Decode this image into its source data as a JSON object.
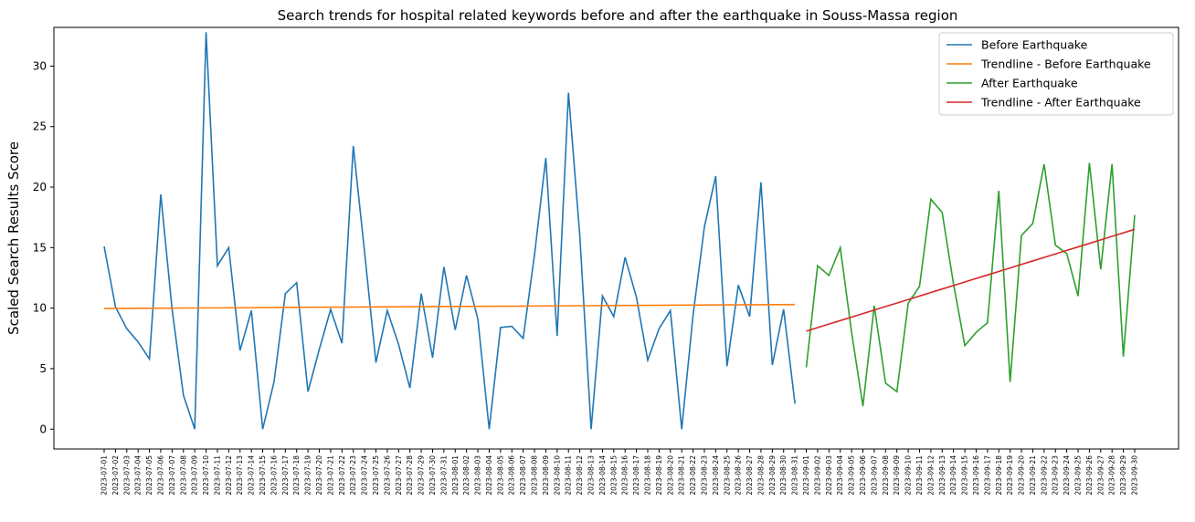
{
  "chart_data": {
    "type": "line",
    "title": "Search trends for hospital related keywords before and after the earthquake in Souss-Massa region",
    "y_label": "Scaled Search Results Score",
    "categories": [
      "2023-07-01",
      "2023-07-02",
      "2023-07-03",
      "2023-07-04",
      "2023-07-05",
      "2023-07-06",
      "2023-07-07",
      "2023-07-08",
      "2023-07-09",
      "2023-07-10",
      "2023-07-11",
      "2023-07-12",
      "2023-07-13",
      "2023-07-14",
      "2023-07-15",
      "2023-07-16",
      "2023-07-17",
      "2023-07-18",
      "2023-07-19",
      "2023-07-20",
      "2023-07-21",
      "2023-07-22",
      "2023-07-23",
      "2023-07-24",
      "2023-07-25",
      "2023-07-26",
      "2023-07-27",
      "2023-07-28",
      "2023-07-29",
      "2023-07-30",
      "2023-07-31",
      "2023-08-01",
      "2023-08-02",
      "2023-08-03",
      "2023-08-04",
      "2023-08-05",
      "2023-08-06",
      "2023-08-07",
      "2023-08-08",
      "2023-08-09",
      "2023-08-10",
      "2023-08-11",
      "2023-08-12",
      "2023-08-13",
      "2023-08-14",
      "2023-08-15",
      "2023-08-16",
      "2023-08-17",
      "2023-08-18",
      "2023-08-19",
      "2023-08-20",
      "2023-08-21",
      "2023-08-22",
      "2023-08-23",
      "2023-08-24",
      "2023-08-25",
      "2023-08-26",
      "2023-08-27",
      "2023-08-28",
      "2023-08-29",
      "2023-08-30",
      "2023-08-31",
      "2023-09-01",
      "2023-09-02",
      "2023-09-03",
      "2023-09-04",
      "2023-09-05",
      "2023-09-06",
      "2023-09-07",
      "2023-09-08",
      "2023-09-09",
      "2023-09-10",
      "2023-09-11",
      "2023-09-12",
      "2023-09-13",
      "2023-09-14",
      "2023-09-15",
      "2023-09-16",
      "2023-09-17",
      "2023-09-18",
      "2023-09-19",
      "2023-09-20",
      "2023-09-21",
      "2023-09-22",
      "2023-09-23",
      "2023-09-24",
      "2023-09-25",
      "2023-09-26",
      "2023-09-27",
      "2023-09-28",
      "2023-09-29",
      "2023-09-30"
    ],
    "series": [
      {
        "name": "Before Earthquake",
        "color": "#1f77b4",
        "values": [
          15.1,
          10.1,
          8.3,
          7.2,
          5.8,
          19.4,
          9.9,
          2.8,
          0,
          32.8,
          13.5,
          15.0,
          6.5,
          9.8,
          0,
          3.9,
          11.2,
          12.1,
          3.1,
          6.6,
          9.9,
          7.1,
          23.4,
          14.6,
          5.5,
          9.8,
          7.0,
          3.4,
          11.2,
          5.9,
          13.4,
          8.2,
          12.7,
          9.1,
          0,
          8.4,
          8.5,
          7.5,
          14.4,
          22.4,
          7.7,
          27.8,
          16.0,
          0,
          11.0,
          9.3,
          14.2,
          10.9,
          5.7,
          8.3,
          9.8,
          0,
          9.4,
          16.7,
          20.9,
          5.2,
          11.9,
          9.3,
          20.4,
          5.3,
          9.9,
          2.1,
          null,
          null,
          null,
          null,
          null,
          null,
          null,
          null,
          null,
          null,
          null,
          null,
          null,
          null,
          null,
          null,
          null,
          null,
          null,
          null,
          null,
          null,
          null,
          null,
          null,
          null,
          null,
          null,
          null,
          null
        ]
      },
      {
        "name": "Trendline - Before Earthquake",
        "color": "#ff7f0e",
        "values": [
          9.97,
          9.98,
          9.98,
          9.99,
          9.99,
          10.0,
          10.0,
          10.01,
          10.01,
          10.02,
          10.02,
          10.03,
          10.03,
          10.04,
          10.05,
          10.05,
          10.06,
          10.06,
          10.07,
          10.07,
          10.08,
          10.08,
          10.09,
          10.09,
          10.1,
          10.11,
          10.11,
          10.12,
          10.12,
          10.13,
          10.13,
          10.14,
          10.14,
          10.15,
          10.15,
          10.16,
          10.16,
          10.17,
          10.18,
          10.18,
          10.19,
          10.19,
          10.2,
          10.2,
          10.21,
          10.21,
          10.22,
          10.22,
          10.23,
          10.23,
          10.24,
          10.25,
          10.25,
          10.26,
          10.26,
          10.27,
          10.27,
          10.28,
          10.28,
          10.29,
          10.29,
          10.3,
          null,
          null,
          null,
          null,
          null,
          null,
          null,
          null,
          null,
          null,
          null,
          null,
          null,
          null,
          null,
          null,
          null,
          null,
          null,
          null,
          null,
          null,
          null,
          null,
          null,
          null,
          null,
          null,
          null,
          null
        ]
      },
      {
        "name": "After Earthquake",
        "color": "#2ca02c",
        "values": [
          null,
          null,
          null,
          null,
          null,
          null,
          null,
          null,
          null,
          null,
          null,
          null,
          null,
          null,
          null,
          null,
          null,
          null,
          null,
          null,
          null,
          null,
          null,
          null,
          null,
          null,
          null,
          null,
          null,
          null,
          null,
          null,
          null,
          null,
          null,
          null,
          null,
          null,
          null,
          null,
          null,
          null,
          null,
          null,
          null,
          null,
          null,
          null,
          null,
          null,
          null,
          null,
          null,
          null,
          null,
          null,
          null,
          null,
          null,
          null,
          null,
          null,
          5.1,
          13.5,
          12.7,
          15.0,
          8.0,
          1.9,
          10.2,
          3.8,
          3.1,
          10.4,
          11.8,
          19.0,
          17.9,
          12.0,
          6.9,
          8.0,
          8.8,
          19.7,
          3.9,
          16.0,
          17.0,
          21.9,
          15.2,
          14.5,
          11.0,
          22.0,
          13.2,
          21.9,
          6.0,
          17.7
        ]
      },
      {
        "name": "Trendline - After Earthquake",
        "color": "#d62728",
        "values": [
          null,
          null,
          null,
          null,
          null,
          null,
          null,
          null,
          null,
          null,
          null,
          null,
          null,
          null,
          null,
          null,
          null,
          null,
          null,
          null,
          null,
          null,
          null,
          null,
          null,
          null,
          null,
          null,
          null,
          null,
          null,
          null,
          null,
          null,
          null,
          null,
          null,
          null,
          null,
          null,
          null,
          null,
          null,
          null,
          null,
          null,
          null,
          null,
          null,
          null,
          null,
          null,
          null,
          null,
          null,
          null,
          null,
          null,
          null,
          null,
          null,
          null,
          8.1,
          8.39,
          8.68,
          8.97,
          9.26,
          9.55,
          9.84,
          10.13,
          10.42,
          10.71,
          11.0,
          11.29,
          11.58,
          11.87,
          12.16,
          12.45,
          12.74,
          13.03,
          13.32,
          13.61,
          13.9,
          14.19,
          14.48,
          14.77,
          15.06,
          15.35,
          15.64,
          15.93,
          16.22,
          16.51
        ]
      }
    ],
    "ylim": [
      -1.64,
      33.2
    ],
    "yticks": [
      0,
      5,
      10,
      15,
      20,
      25,
      30
    ],
    "grid": false,
    "legend": "upper right"
  }
}
